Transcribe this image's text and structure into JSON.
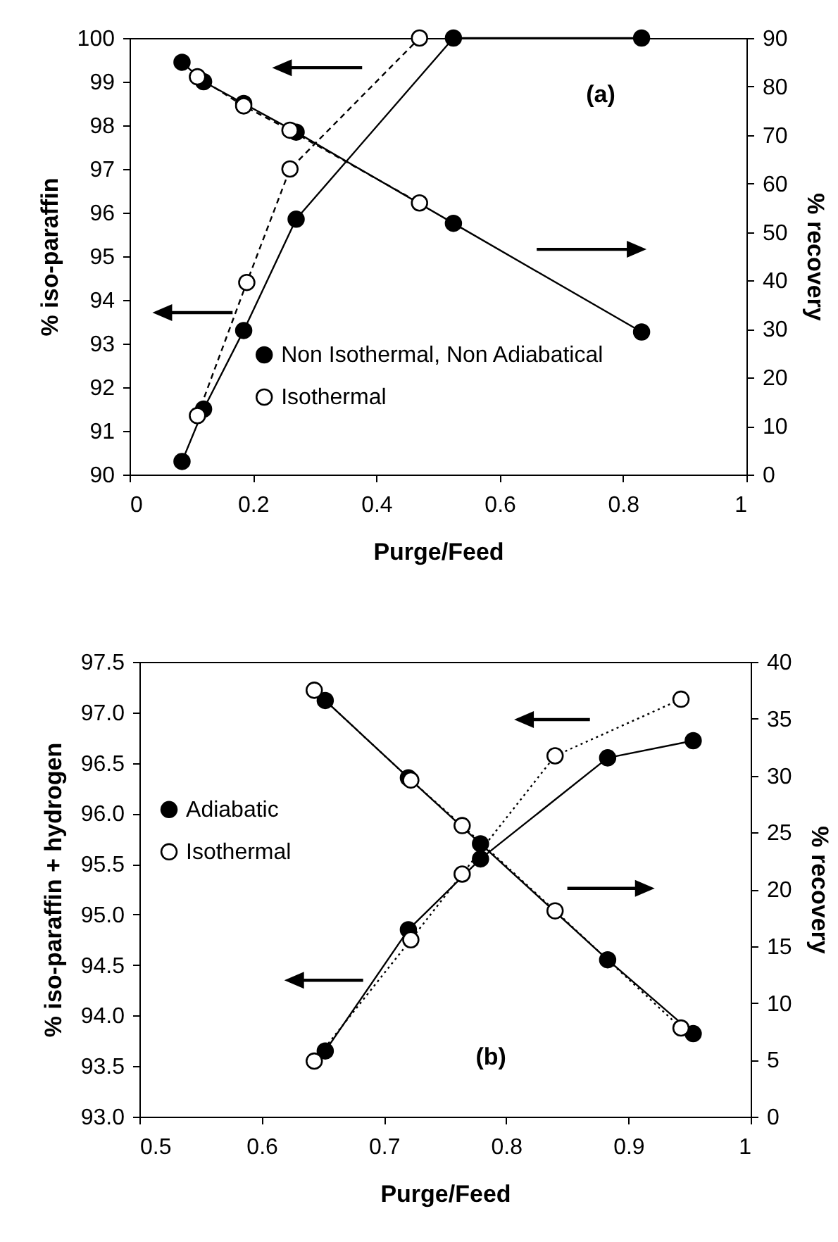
{
  "chart_data": [
    {
      "type": "line",
      "xlabel": "Purge/Feed",
      "ylabel": "% iso-paraffin",
      "y2label": "% recovery",
      "annotations": [
        "(a)"
      ],
      "xlim": [
        0,
        1
      ],
      "xticks": [
        0,
        0.2,
        0.4,
        0.6,
        0.8,
        1
      ],
      "ylim": [
        90,
        100
      ],
      "yticks": [
        90,
        91,
        92,
        93,
        94,
        95,
        96,
        97,
        98,
        99,
        100
      ],
      "y2lim": [
        0,
        90
      ],
      "y2ticks": [
        0,
        10,
        20,
        30,
        40,
        50,
        60,
        70,
        80,
        90
      ],
      "legend": "bottom",
      "marker": "circle",
      "series": [
        {
          "name": "Non Isothermal, Non Adiabatical",
          "color": "#000000",
          "line_style": "solid",
          "x": [
            0.085,
            0.12,
            0.185,
            0.27,
            0.525,
            0.83
          ],
          "values": [
            90.3,
            91.5,
            93.3,
            95.85,
            100,
            100
          ]
        },
        {
          "name": "Isothermal",
          "color": "#000000",
          "line_style": "dashed",
          "x": [
            0.11,
            0.19,
            0.26,
            0.47
          ],
          "values": [
            91.35,
            94.4,
            97.0,
            100
          ]
        },
        {
          "color": "#000000",
          "line_style": "solid",
          "axis": "y2",
          "x": [
            0.085,
            0.12,
            0.185,
            0.27,
            0.525,
            0.83
          ],
          "values": [
            85,
            81,
            76.5,
            70.6,
            51.8,
            29.4
          ]
        },
        {
          "color": "#000000",
          "line_style": "dashed",
          "axis": "y2",
          "x": [
            0.11,
            0.185,
            0.26,
            0.47
          ],
          "values": [
            82,
            76,
            71,
            56
          ]
        }
      ]
    },
    {
      "type": "line",
      "xlabel": "Purge/Feed",
      "ylabel": "% iso-paraffin + hydrogen",
      "y2label": "% recovery",
      "annotations": [
        "(b)"
      ],
      "xlim": [
        0.5,
        1
      ],
      "xticks": [
        0.5,
        0.6,
        0.7,
        0.8,
        0.9,
        1
      ],
      "ylim": [
        93,
        97.5
      ],
      "yticks": [
        {
          "value": 93,
          "label": "93.0"
        },
        93.5,
        {
          "value": 94,
          "label": "94.0"
        },
        94.5,
        {
          "value": 95,
          "label": "95.0"
        },
        95.5,
        {
          "value": 96,
          "label": "96.0"
        },
        96.5,
        {
          "value": 97,
          "label": "97.0"
        },
        97.5
      ],
      "y2lim": [
        0,
        40
      ],
      "y2ticks": [
        0,
        5,
        10,
        15,
        20,
        25,
        30,
        35,
        40
      ],
      "legend": "left",
      "marker": "circle",
      "series": [
        {
          "name": "Adiabatic",
          "color": "#000000",
          "line_style": "solid",
          "x": [
            0.652,
            0.72,
            0.779,
            0.883,
            0.953
          ],
          "values": [
            93.65,
            94.85,
            95.55,
            96.55,
            96.72
          ]
        },
        {
          "name": "Isothermal",
          "color": "#000000",
          "line_style": "dotted",
          "x": [
            0.643,
            0.722,
            0.764,
            0.84,
            0.943
          ],
          "values": [
            93.55,
            94.75,
            95.4,
            96.57,
            97.13
          ]
        },
        {
          "color": "#000000",
          "line_style": "solid",
          "axis": "y2",
          "x": [
            0.652,
            0.72,
            0.779,
            0.883,
            0.953
          ],
          "values": [
            36.6,
            29.8,
            24,
            13.8,
            7.3
          ]
        },
        {
          "color": "#000000",
          "line_style": "dotted",
          "axis": "y2",
          "x": [
            0.643,
            0.722,
            0.764,
            0.84,
            0.943
          ],
          "values": [
            37.5,
            29.6,
            25.6,
            18.1,
            7.8
          ]
        }
      ]
    }
  ]
}
